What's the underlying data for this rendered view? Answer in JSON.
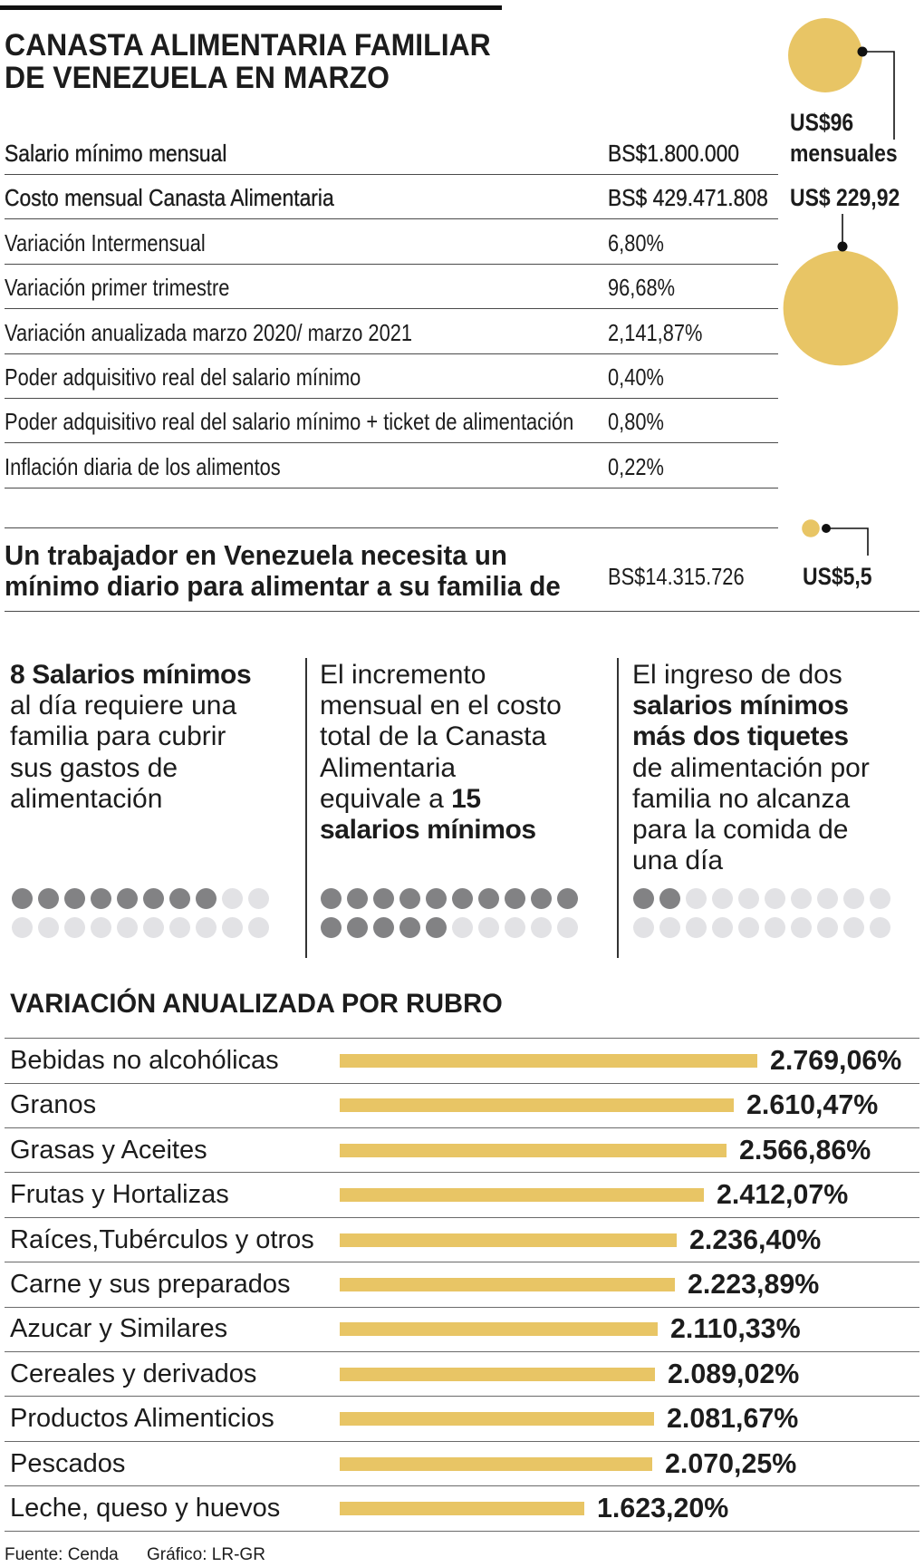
{
  "title": {
    "line1": "CANASTA ALIMENTARIA FAMILIAR",
    "line2": "DE VENEZUELA EN MARZO"
  },
  "colors": {
    "gold": "#e8c565",
    "ink": "#1c1c1c",
    "dot_filled": "#828284",
    "dot_empty": "#e2e2e5"
  },
  "usd_callouts": {
    "salary_amount": "US$96",
    "salary_period": "mensuales",
    "basket_amount": "US$ 229,92",
    "daily_amount": "US$5,5"
  },
  "circle_values": {
    "salary_usd": 96,
    "basket_usd": 229.92,
    "daily_usd": 5.5
  },
  "table": {
    "rows": [
      {
        "label": "Salario mínimo mensual",
        "value": "BS$1.800.000",
        "emphasis": true
      },
      {
        "label": "Costo mensual Canasta Alimentaria",
        "value": "BS$ 429.471.808",
        "emphasis": true
      },
      {
        "label": "Variación Intermensual",
        "value": "6,80%",
        "emphasis": false
      },
      {
        "label": "Variación primer trimestre",
        "value": "96,68%",
        "emphasis": false
      },
      {
        "label": "Variación anualizada marzo 2020/ marzo 2021",
        "value": "2,141,87%",
        "emphasis": false
      },
      {
        "label": "Poder adquisitivo real del salario mínimo",
        "value": "0,40%",
        "emphasis": false
      },
      {
        "label": "Poder adquisitivo real del salario mínimo + ticket de alimentación",
        "value": "0,80%",
        "emphasis": false
      },
      {
        "label": "Inflación diaria de los alimentos",
        "value": "0,22%",
        "emphasis": false
      }
    ]
  },
  "daily_need": {
    "line1": "Un trabajador en Venezuela necesita un",
    "line2": "mínimo diario para alimentar a su familia de",
    "bs_value": "BS$14.315.726"
  },
  "facts": [
    {
      "lines": [
        [
          {
            "text": "8 Salarios mínimos",
            "bold": true
          }
        ],
        [
          {
            "text": "al día requiere una",
            "bold": false
          }
        ],
        [
          {
            "text": "familia para cubrir",
            "bold": false
          }
        ],
        [
          {
            "text": "sus gastos de",
            "bold": false
          }
        ],
        [
          {
            "text": "alimentación",
            "bold": false
          }
        ]
      ],
      "dots_total": 20,
      "dots_filled": 8
    },
    {
      "lines": [
        [
          {
            "text": "El incremento",
            "bold": false
          }
        ],
        [
          {
            "text": "mensual en el costo",
            "bold": false
          }
        ],
        [
          {
            "text": "total de la Canasta",
            "bold": false
          }
        ],
        [
          {
            "text": "Alimentaria",
            "bold": false
          }
        ],
        [
          {
            "text": "equivale a ",
            "bold": false
          },
          {
            "text": "15",
            "bold": true
          }
        ],
        [
          {
            "text": "salarios mínimos",
            "bold": true
          }
        ]
      ],
      "dots_total": 20,
      "dots_filled": 15
    },
    {
      "lines": [
        [
          {
            "text": "El ingreso de dos",
            "bold": false
          }
        ],
        [
          {
            "text": "salarios mínimos",
            "bold": true
          }
        ],
        [
          {
            "text": "más dos tiquetes",
            "bold": true
          }
        ],
        [
          {
            "text": "de alimentación por",
            "bold": false
          }
        ],
        [
          {
            "text": "familia no alcanza",
            "bold": false
          }
        ],
        [
          {
            "text": "para la comida de",
            "bold": false
          }
        ],
        [
          {
            "text": "una día",
            "bold": false
          }
        ]
      ],
      "dots_total": 20,
      "dots_filled": 2
    }
  ],
  "chart_data": {
    "type": "bar",
    "title": "VARIACIÓN ANUALIZADA POR RUBRO",
    "categories": [
      "Bebidas no alcohólicas",
      "Granos",
      "Grasas y Aceites",
      "Frutas y Hortalizas",
      "Raíces,Tubérculos y otros",
      "Carne y sus preparados",
      "Azucar y Similares",
      "Cereales y derivados",
      "Productos Alimenticios",
      "Pescados",
      "Leche, queso y huevos"
    ],
    "values": [
      2769.06,
      2610.47,
      2566.86,
      2412.07,
      2236.4,
      2223.89,
      2110.33,
      2089.02,
      2081.67,
      2070.25,
      1623.2
    ],
    "value_labels": [
      "2.769,06%",
      "2.610,47%",
      "2.566,86%",
      "2.412,07%",
      "2.236,40%",
      "2.223,89%",
      "2.110,33%",
      "2.089,02%",
      "2.081,67%",
      "2.070,25%",
      "1.623,20%"
    ],
    "xlim": [
      0,
      2769.06
    ]
  },
  "footer": {
    "source": "Fuente: Cenda",
    "credit": "Gráfico: LR-GR"
  }
}
